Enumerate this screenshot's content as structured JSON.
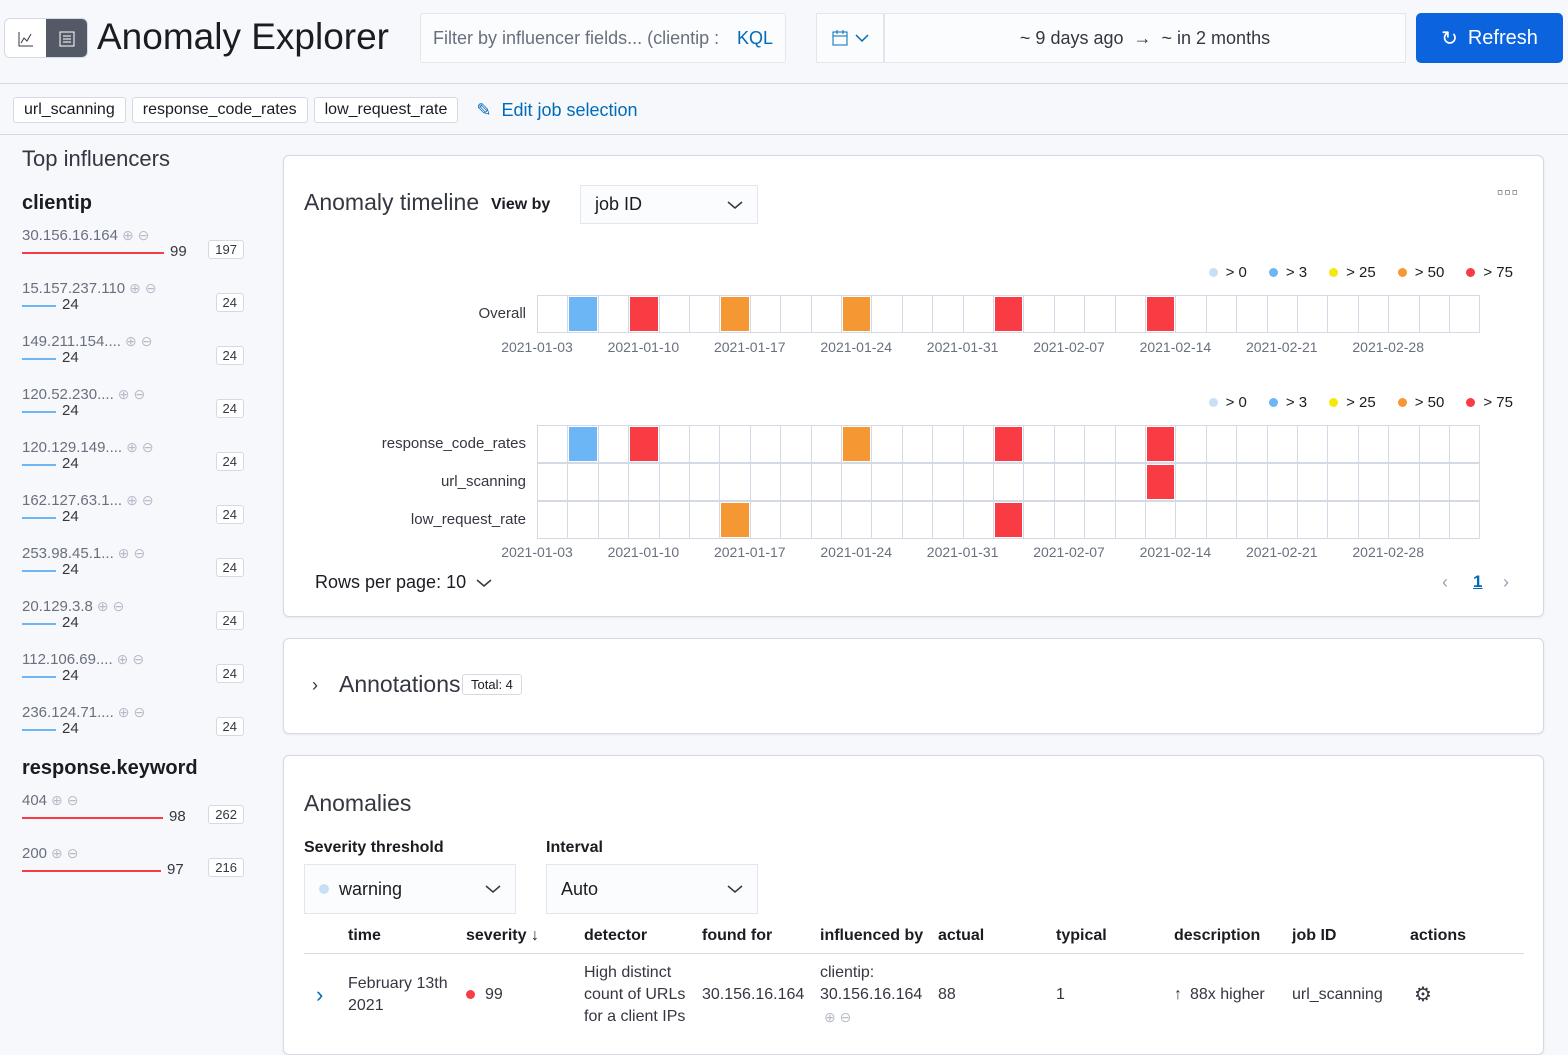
{
  "header": {
    "title": "Anomaly Explorer",
    "filter_placeholder": "Filter by influencer fields... (clientip :",
    "kql": "KQL",
    "date_start": "~ 9 days ago",
    "date_arrow": "→",
    "date_end": "~ in 2 months",
    "refresh": "Refresh"
  },
  "jobs": [
    "url_scanning",
    "response_code_rates",
    "low_request_rate"
  ],
  "edit_jobs": "Edit job selection",
  "influencers": {
    "title": "Top influencers",
    "groups": [
      {
        "field": "clientip",
        "items": [
          {
            "name": "30.156.16.164",
            "score": 99,
            "count": 197
          },
          {
            "name": "15.157.237.110",
            "score": 24,
            "count": 24
          },
          {
            "name": "149.211.154....",
            "score": 24,
            "count": 24
          },
          {
            "name": "120.52.230....",
            "score": 24,
            "count": 24
          },
          {
            "name": "120.129.149....",
            "score": 24,
            "count": 24
          },
          {
            "name": "162.127.63.1...",
            "score": 24,
            "count": 24
          },
          {
            "name": "253.98.45.1...",
            "score": 24,
            "count": 24
          },
          {
            "name": "20.129.3.8",
            "score": 24,
            "count": 24
          },
          {
            "name": "112.106.69....",
            "score": 24,
            "count": 24
          },
          {
            "name": "236.124.71....",
            "score": 24,
            "count": 24
          }
        ]
      },
      {
        "field": "response.keyword",
        "items": [
          {
            "name": "404",
            "score": 98,
            "count": 262
          },
          {
            "name": "200",
            "score": 97,
            "count": 216
          }
        ]
      }
    ]
  },
  "timeline": {
    "title": "Anomaly timeline",
    "view_by_label": "View by",
    "view_by": "job ID",
    "legend": [
      {
        "label": "> 0",
        "color": "#c8e0f5"
      },
      {
        "label": "> 3",
        "color": "#6cb6f5"
      },
      {
        "label": "> 25",
        "color": "#f5e90c"
      },
      {
        "label": "> 50",
        "color": "#f59834"
      },
      {
        "label": "> 75",
        "color": "#f93b43"
      }
    ],
    "ticks": [
      "2021-01-03",
      "2021-01-10",
      "2021-01-17",
      "2021-01-24",
      "2021-01-31",
      "2021-02-07",
      "2021-02-14",
      "2021-02-21",
      "2021-02-28"
    ],
    "overall_label": "Overall",
    "overall": [
      {
        "date": "2021-01-05",
        "severity": "> 3"
      },
      {
        "date": "2021-01-09",
        "severity": "> 75"
      },
      {
        "date": "2021-01-15",
        "severity": "> 50"
      },
      {
        "date": "2021-01-23",
        "severity": "> 50"
      },
      {
        "date": "2021-02-02",
        "severity": "> 75"
      },
      {
        "date": "2021-02-12",
        "severity": "> 75"
      }
    ],
    "rows": [
      {
        "label": "response_code_rates",
        "cells": [
          {
            "date": "2021-01-05",
            "severity": "> 3"
          },
          {
            "date": "2021-01-09",
            "severity": "> 75"
          },
          {
            "date": "2021-01-23",
            "severity": "> 50"
          },
          {
            "date": "2021-02-02",
            "severity": "> 75"
          },
          {
            "date": "2021-02-12",
            "severity": "> 75"
          }
        ]
      },
      {
        "label": "url_scanning",
        "cells": [
          {
            "date": "2021-02-12",
            "severity": "> 75"
          }
        ]
      },
      {
        "label": "low_request_rate",
        "cells": [
          {
            "date": "2021-01-15",
            "severity": "> 50"
          },
          {
            "date": "2021-02-02",
            "severity": "> 75"
          }
        ]
      }
    ],
    "rows_per_page": "Rows per page: 10",
    "page": "1"
  },
  "annotations": {
    "title": "Annotations",
    "total": "Total: 4"
  },
  "anomalies": {
    "title": "Anomalies",
    "severity_label": "Severity threshold",
    "severity": "warning",
    "interval_label": "Interval",
    "interval": "Auto",
    "columns": [
      "time",
      "severity",
      "detector",
      "found for",
      "influenced by",
      "actual",
      "typical",
      "description",
      "job ID",
      "actions"
    ],
    "rows": [
      {
        "time": "February 13th 2021",
        "severity": "99",
        "detector": "High distinct count of URLs for a client IPs",
        "found_for": "30.156.16.164",
        "influenced_by": "clientip: 30.156.16.164",
        "actual": "88",
        "typical": "1",
        "description": "88x higher",
        "job_id": "url_scanning"
      }
    ]
  }
}
